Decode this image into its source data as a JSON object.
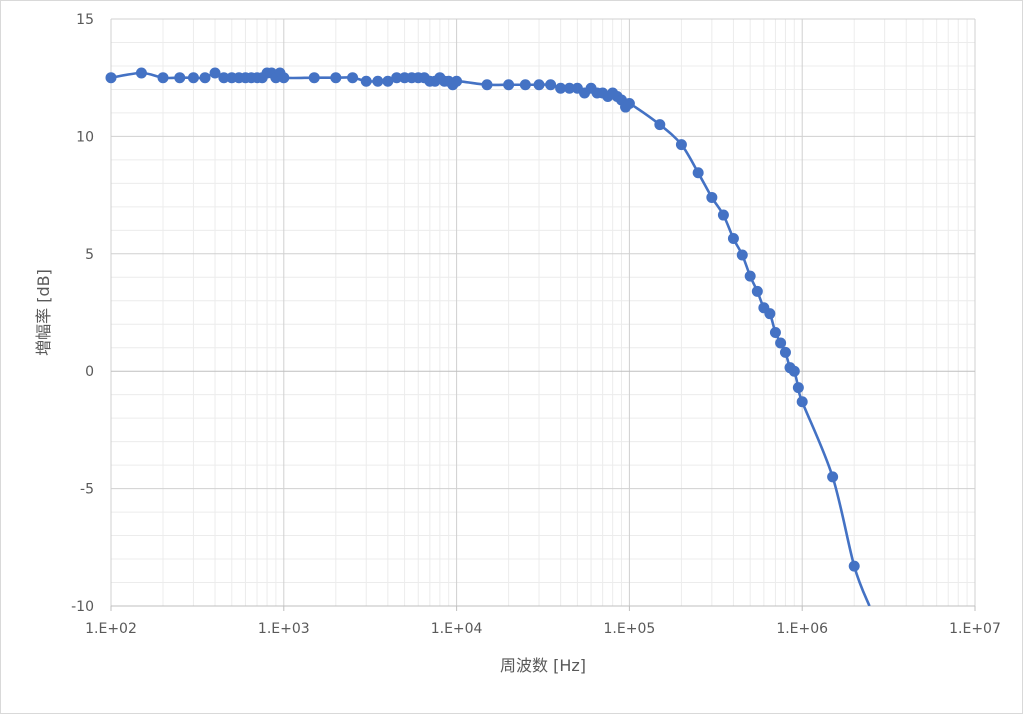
{
  "chart_data": {
    "type": "line",
    "title": "",
    "xlabel": "周波数 [Hz]",
    "ylabel": "増幅率 [dB]",
    "x_scale": "log",
    "xlim": [
      100,
      10000000
    ],
    "ylim": [
      -10,
      15
    ],
    "x_ticks": [
      100,
      1000,
      10000,
      100000,
      1000000,
      10000000
    ],
    "x_tick_labels": [
      "1.E+02",
      "1.E+03",
      "1.E+04",
      "1.E+05",
      "1.E+06",
      "1.E+07"
    ],
    "y_ticks": [
      15,
      10,
      5,
      0,
      -5,
      -10
    ],
    "y_tick_labels": [
      "15",
      "10",
      "5",
      "0",
      "-5",
      "-10"
    ],
    "grid": true,
    "minor_grid": true,
    "legend": "none",
    "series_color": "#4472C4",
    "series": [
      {
        "points": [
          [
            100,
            12.5
          ],
          [
            150,
            12.7
          ],
          [
            200,
            12.5
          ],
          [
            250,
            12.5
          ],
          [
            300,
            12.5
          ],
          [
            350,
            12.5
          ],
          [
            400,
            12.7
          ],
          [
            450,
            12.5
          ],
          [
            500,
            12.5
          ],
          [
            550,
            12.5
          ],
          [
            600,
            12.5
          ],
          [
            650,
            12.5
          ],
          [
            700,
            12.5
          ],
          [
            750,
            12.5
          ],
          [
            800,
            12.7
          ],
          [
            850,
            12.7
          ],
          [
            900,
            12.5
          ],
          [
            950,
            12.7
          ],
          [
            1000,
            12.5
          ],
          [
            1500,
            12.5
          ],
          [
            2000,
            12.5
          ],
          [
            2500,
            12.5
          ],
          [
            3000,
            12.35
          ],
          [
            3500,
            12.35
          ],
          [
            4000,
            12.35
          ],
          [
            4500,
            12.5
          ],
          [
            5000,
            12.5
          ],
          [
            5500,
            12.5
          ],
          [
            6000,
            12.5
          ],
          [
            6500,
            12.5
          ],
          [
            7000,
            12.35
          ],
          [
            7500,
            12.35
          ],
          [
            8000,
            12.5
          ],
          [
            8500,
            12.35
          ],
          [
            9000,
            12.35
          ],
          [
            9500,
            12.2
          ],
          [
            10000,
            12.35
          ],
          [
            15000,
            12.2
          ],
          [
            20000,
            12.2
          ],
          [
            25000,
            12.2
          ],
          [
            30000,
            12.2
          ],
          [
            35000,
            12.2
          ],
          [
            40000,
            12.05
          ],
          [
            45000,
            12.05
          ],
          [
            50000,
            12.05
          ],
          [
            55000,
            11.85
          ],
          [
            60000,
            12.05
          ],
          [
            65000,
            11.85
          ],
          [
            70000,
            11.85
          ],
          [
            75000,
            11.7
          ],
          [
            80000,
            11.85
          ],
          [
            85000,
            11.7
          ],
          [
            90000,
            11.55
          ],
          [
            95000,
            11.25
          ],
          [
            100000,
            11.4
          ],
          [
            150000,
            10.5
          ],
          [
            200000,
            9.65
          ],
          [
            250000,
            8.45
          ],
          [
            300000,
            7.4
          ],
          [
            350000,
            6.65
          ],
          [
            400000,
            5.65
          ],
          [
            450000,
            4.95
          ],
          [
            500000,
            4.05
          ],
          [
            550000,
            3.4
          ],
          [
            600000,
            2.7
          ],
          [
            650000,
            2.45
          ],
          [
            700000,
            1.65
          ],
          [
            750000,
            1.2
          ],
          [
            800000,
            0.8
          ],
          [
            850000,
            0.15
          ],
          [
            900000,
            0.0
          ],
          [
            950000,
            -0.7
          ],
          [
            1000000,
            -1.3
          ],
          [
            1500000,
            -4.5
          ],
          [
            2000000,
            -8.3
          ],
          [
            2450000,
            -10.0
          ]
        ],
        "marker_until_x": 2000000
      }
    ]
  }
}
